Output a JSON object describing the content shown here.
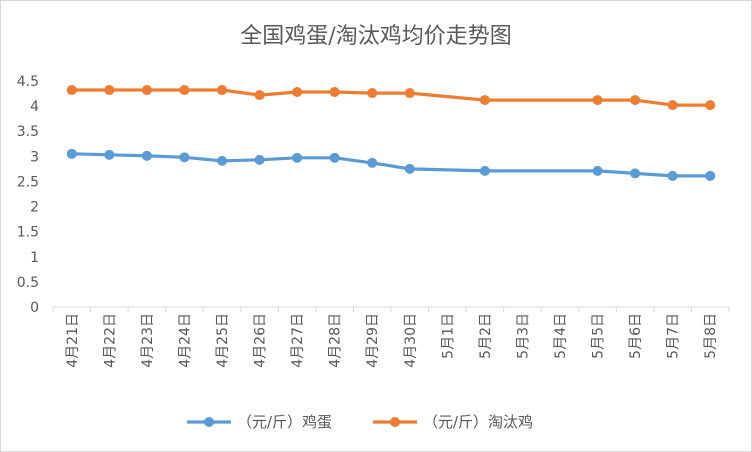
{
  "chart_data": {
    "type": "line",
    "title": "全国鸡蛋/淘汰鸡均价走势图",
    "xlabel": "",
    "ylabel": "",
    "ylim": [
      0,
      4.5
    ],
    "yticks": [
      "0",
      "0.5",
      "1",
      "1.5",
      "2",
      "2.5",
      "3",
      "3.5",
      "4",
      "4.5"
    ],
    "grid": false,
    "legend_position": "bottom",
    "categories": [
      "4月21日",
      "4月22日",
      "4月23日",
      "4月24日",
      "4月25日",
      "4月26日",
      "4月27日",
      "4月28日",
      "4月29日",
      "4月30日",
      "5月1日",
      "5月2日",
      "5月3日",
      "5月4日",
      "5月5日",
      "5月6日",
      "5月7日",
      "5月8日"
    ],
    "series": [
      {
        "name": "（元/斤）鸡蛋",
        "color": "#5b9bd5",
        "values": [
          3.05,
          3.03,
          3.01,
          2.98,
          2.91,
          2.93,
          2.97,
          2.97,
          2.87,
          2.75,
          null,
          2.71,
          null,
          null,
          2.71,
          2.66,
          2.61,
          2.61
        ]
      },
      {
        "name": "（元/斤）淘汰鸡",
        "color": "#ed7d31",
        "values": [
          4.32,
          4.32,
          4.32,
          4.32,
          4.32,
          4.22,
          4.28,
          4.28,
          4.26,
          4.26,
          null,
          4.12,
          null,
          null,
          4.12,
          4.12,
          4.02,
          4.02
        ]
      }
    ]
  }
}
